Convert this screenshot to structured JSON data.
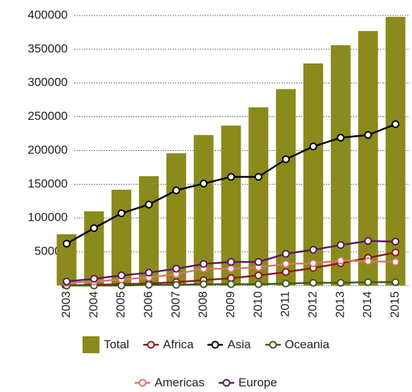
{
  "chart_data": {
    "type": "bar_line",
    "categories": [
      "2003",
      "2004",
      "2005",
      "2006",
      "2007",
      "2008",
      "2009",
      "2010",
      "2011",
      "2012",
      "2013",
      "2014",
      "2015"
    ],
    "series": [
      {
        "name": "Total",
        "type": "bar",
        "color": "#8b8a1c",
        "values": [
          76000,
          110000,
          142000,
          162000,
          196000,
          223000,
          237000,
          264000,
          291000,
          329000,
          356000,
          377000,
          398000
        ]
      },
      {
        "name": "Africa",
        "type": "line",
        "color": "#8b1a1a",
        "values": [
          0,
          1000,
          2000,
          3000,
          5000,
          8000,
          11000,
          15000,
          20000,
          26000,
          33000,
          41000,
          49000
        ]
      },
      {
        "name": "Asia",
        "type": "line",
        "color": "#000000",
        "values": [
          62000,
          85000,
          107000,
          120000,
          141000,
          151000,
          161000,
          161000,
          187000,
          206000,
          219000,
          223000,
          239000
        ]
      },
      {
        "name": "Oceania",
        "type": "line",
        "color": "#3d5a1e",
        "values": [
          0,
          0,
          0,
          1000,
          1000,
          2000,
          2000,
          2000,
          3000,
          4000,
          4000,
          5000,
          5000
        ]
      },
      {
        "name": "Americas",
        "type": "line",
        "color": "#d9756a",
        "values": [
          4000,
          6000,
          9000,
          12000,
          17000,
          25000,
          25000,
          27000,
          32000,
          33000,
          37000,
          36000,
          35000
        ]
      },
      {
        "name": "Europe",
        "type": "line",
        "color": "#5a1a5a",
        "values": [
          6000,
          10000,
          15000,
          19000,
          25000,
          32000,
          35000,
          35000,
          47000,
          53000,
          60000,
          66000,
          65000
        ]
      }
    ],
    "ylim": [
      0,
      400000
    ],
    "yticks": [
      0,
      50000,
      100000,
      150000,
      200000,
      250000,
      300000,
      350000,
      400000
    ],
    "grid": true
  }
}
